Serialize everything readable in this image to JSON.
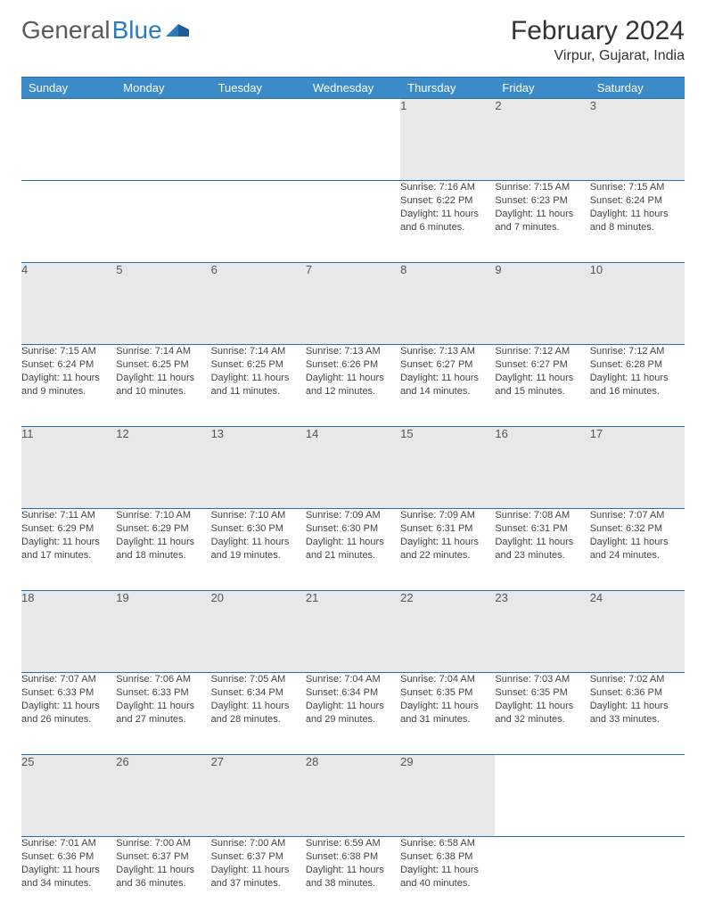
{
  "logo": {
    "word1": "General",
    "word2": "Blue"
  },
  "header": {
    "month": "February 2024",
    "location": "Virpur, Gujarat, India"
  },
  "colors": {
    "header_bg": "#3b8bc9",
    "header_text": "#ffffff",
    "row_divider": "#2b6fa3",
    "daynum_bg": "#e8e8e8",
    "body_text": "#444444",
    "logo_gray": "#5a5a5a",
    "logo_blue": "#2b7bbf"
  },
  "weekdays": [
    "Sunday",
    "Monday",
    "Tuesday",
    "Wednesday",
    "Thursday",
    "Friday",
    "Saturday"
  ],
  "weeks": [
    [
      null,
      null,
      null,
      null,
      {
        "n": "1",
        "sunrise": "7:16 AM",
        "sunset": "6:22 PM",
        "dl": "11 hours and 6 minutes."
      },
      {
        "n": "2",
        "sunrise": "7:15 AM",
        "sunset": "6:23 PM",
        "dl": "11 hours and 7 minutes."
      },
      {
        "n": "3",
        "sunrise": "7:15 AM",
        "sunset": "6:24 PM",
        "dl": "11 hours and 8 minutes."
      }
    ],
    [
      {
        "n": "4",
        "sunrise": "7:15 AM",
        "sunset": "6:24 PM",
        "dl": "11 hours and 9 minutes."
      },
      {
        "n": "5",
        "sunrise": "7:14 AM",
        "sunset": "6:25 PM",
        "dl": "11 hours and 10 minutes."
      },
      {
        "n": "6",
        "sunrise": "7:14 AM",
        "sunset": "6:25 PM",
        "dl": "11 hours and 11 minutes."
      },
      {
        "n": "7",
        "sunrise": "7:13 AM",
        "sunset": "6:26 PM",
        "dl": "11 hours and 12 minutes."
      },
      {
        "n": "8",
        "sunrise": "7:13 AM",
        "sunset": "6:27 PM",
        "dl": "11 hours and 14 minutes."
      },
      {
        "n": "9",
        "sunrise": "7:12 AM",
        "sunset": "6:27 PM",
        "dl": "11 hours and 15 minutes."
      },
      {
        "n": "10",
        "sunrise": "7:12 AM",
        "sunset": "6:28 PM",
        "dl": "11 hours and 16 minutes."
      }
    ],
    [
      {
        "n": "11",
        "sunrise": "7:11 AM",
        "sunset": "6:29 PM",
        "dl": "11 hours and 17 minutes."
      },
      {
        "n": "12",
        "sunrise": "7:10 AM",
        "sunset": "6:29 PM",
        "dl": "11 hours and 18 minutes."
      },
      {
        "n": "13",
        "sunrise": "7:10 AM",
        "sunset": "6:30 PM",
        "dl": "11 hours and 19 minutes."
      },
      {
        "n": "14",
        "sunrise": "7:09 AM",
        "sunset": "6:30 PM",
        "dl": "11 hours and 21 minutes."
      },
      {
        "n": "15",
        "sunrise": "7:09 AM",
        "sunset": "6:31 PM",
        "dl": "11 hours and 22 minutes."
      },
      {
        "n": "16",
        "sunrise": "7:08 AM",
        "sunset": "6:31 PM",
        "dl": "11 hours and 23 minutes."
      },
      {
        "n": "17",
        "sunrise": "7:07 AM",
        "sunset": "6:32 PM",
        "dl": "11 hours and 24 minutes."
      }
    ],
    [
      {
        "n": "18",
        "sunrise": "7:07 AM",
        "sunset": "6:33 PM",
        "dl": "11 hours and 26 minutes."
      },
      {
        "n": "19",
        "sunrise": "7:06 AM",
        "sunset": "6:33 PM",
        "dl": "11 hours and 27 minutes."
      },
      {
        "n": "20",
        "sunrise": "7:05 AM",
        "sunset": "6:34 PM",
        "dl": "11 hours and 28 minutes."
      },
      {
        "n": "21",
        "sunrise": "7:04 AM",
        "sunset": "6:34 PM",
        "dl": "11 hours and 29 minutes."
      },
      {
        "n": "22",
        "sunrise": "7:04 AM",
        "sunset": "6:35 PM",
        "dl": "11 hours and 31 minutes."
      },
      {
        "n": "23",
        "sunrise": "7:03 AM",
        "sunset": "6:35 PM",
        "dl": "11 hours and 32 minutes."
      },
      {
        "n": "24",
        "sunrise": "7:02 AM",
        "sunset": "6:36 PM",
        "dl": "11 hours and 33 minutes."
      }
    ],
    [
      {
        "n": "25",
        "sunrise": "7:01 AM",
        "sunset": "6:36 PM",
        "dl": "11 hours and 34 minutes."
      },
      {
        "n": "26",
        "sunrise": "7:00 AM",
        "sunset": "6:37 PM",
        "dl": "11 hours and 36 minutes."
      },
      {
        "n": "27",
        "sunrise": "7:00 AM",
        "sunset": "6:37 PM",
        "dl": "11 hours and 37 minutes."
      },
      {
        "n": "28",
        "sunrise": "6:59 AM",
        "sunset": "6:38 PM",
        "dl": "11 hours and 38 minutes."
      },
      {
        "n": "29",
        "sunrise": "6:58 AM",
        "sunset": "6:38 PM",
        "dl": "11 hours and 40 minutes."
      },
      null,
      null
    ]
  ],
  "labels": {
    "sunrise": "Sunrise:",
    "sunset": "Sunset:",
    "daylight": "Daylight:"
  }
}
